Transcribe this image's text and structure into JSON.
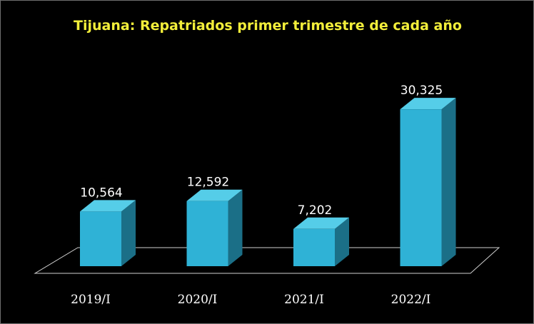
{
  "chart_data": {
    "type": "bar",
    "title": "Tijuana: Repatriados primer trimestre de cada año",
    "categories": [
      "2019/I",
      "2020/I",
      "2021/I",
      "2022/I"
    ],
    "values": [
      10564,
      12592,
      7202,
      30325
    ],
    "value_labels": [
      "10,564",
      "12,592",
      "7,202",
      "30,325"
    ],
    "xlabel": "",
    "ylabel": "",
    "ylim": [
      0,
      32000
    ],
    "grid": false,
    "legend": "none",
    "style": "3d-column"
  },
  "colors": {
    "background": "#000000",
    "title": "#f2ee3a",
    "bar_front": "#2fb2d6",
    "bar_side": "#1b6f87",
    "bar_top": "#55cde8",
    "floor_outline": "#cfcfcf",
    "text": "#ffffff"
  }
}
